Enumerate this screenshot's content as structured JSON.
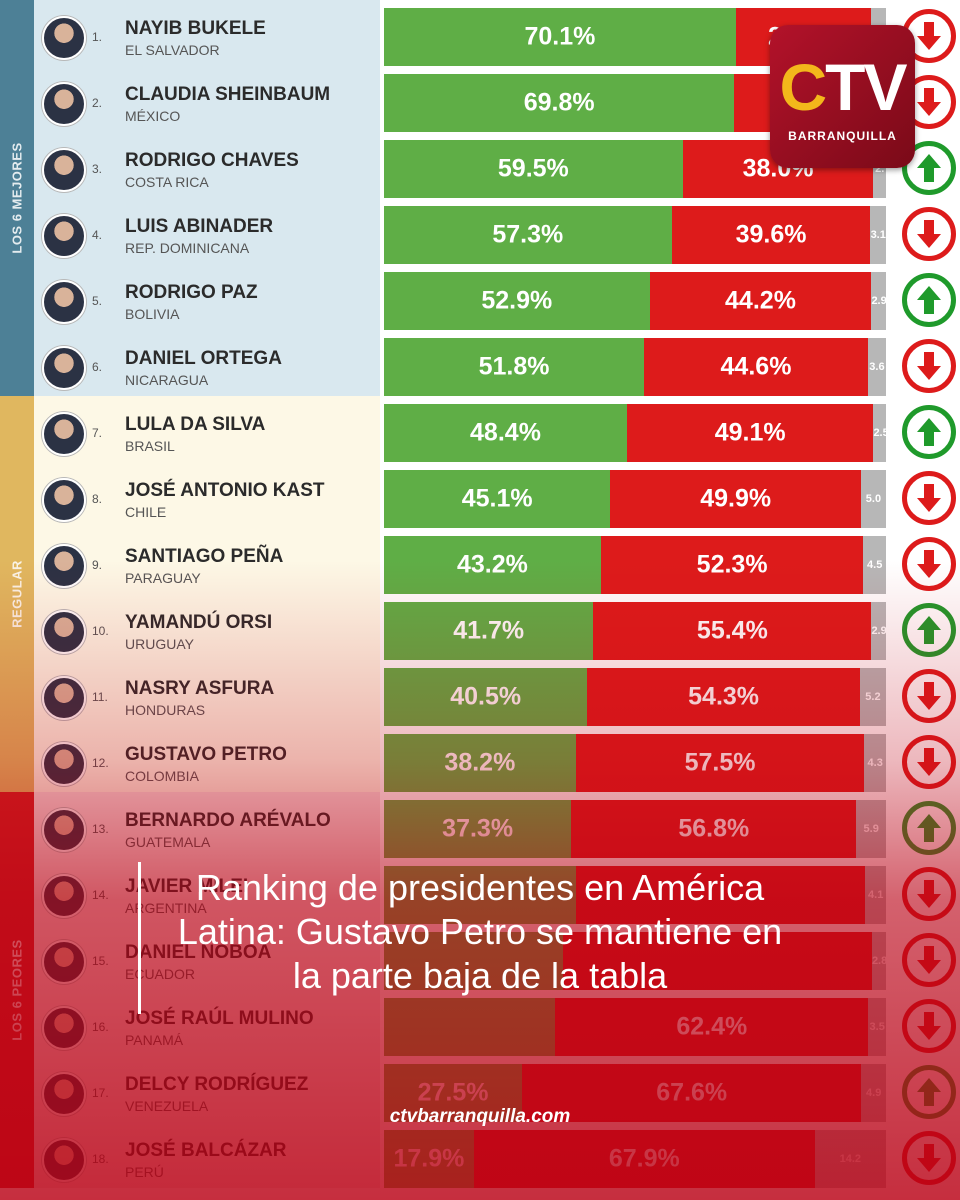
{
  "categories": [
    {
      "label": "LOS 6 MEJORES",
      "color": "#4d8096"
    },
    {
      "label": "REGULAR",
      "color": "#e0b75f"
    },
    {
      "label": "LOS 6 PEORES",
      "color": "#cf1f1f"
    }
  ],
  "chart_data": {
    "type": "bar",
    "stacked": true,
    "series": [
      {
        "name": "approval",
        "color": "#5fae46"
      },
      {
        "name": "disapproval",
        "color": "#dd1b1b"
      },
      {
        "name": "ns/nr",
        "color": "#b7b7b7"
      }
    ],
    "rows": [
      {
        "rank": "1.",
        "name": "NAYIB BUKELE",
        "country": "EL SALVADOR",
        "approval": 70.1,
        "approval_label": "70.1%",
        "disapproval": 26.9,
        "disapproval_label": "26.9%",
        "other": 3.0,
        "other_label": "",
        "trend": "down"
      },
      {
        "rank": "2.",
        "name": "CLAUDIA SHEINBAUM",
        "country": "MÉXICO",
        "approval": 69.8,
        "approval_label": "69.8%",
        "disapproval": 27.0,
        "disapproval_label": "2",
        "other": 3.2,
        "other_label": "",
        "trend": "down"
      },
      {
        "rank": "3.",
        "name": "RODRIGO CHAVES",
        "country": "COSTA RICA",
        "approval": 59.5,
        "approval_label": "59.5%",
        "disapproval": 38.0,
        "disapproval_label": "38.0%",
        "other": 2.5,
        "other_label": "2.",
        "trend": "up"
      },
      {
        "rank": "4.",
        "name": "LUIS ABINADER",
        "country": "REP. DOMINICANA",
        "approval": 57.3,
        "approval_label": "57.3%",
        "disapproval": 39.6,
        "disapproval_label": "39.6%",
        "other": 3.1,
        "other_label": "3.1",
        "trend": "down"
      },
      {
        "rank": "5.",
        "name": "RODRIGO PAZ",
        "country": "BOLIVIA",
        "approval": 52.9,
        "approval_label": "52.9%",
        "disapproval": 44.2,
        "disapproval_label": "44.2%",
        "other": 2.9,
        "other_label": "2.9",
        "trend": "up"
      },
      {
        "rank": "6.",
        "name": "DANIEL ORTEGA",
        "country": "NICARAGUA",
        "approval": 51.8,
        "approval_label": "51.8%",
        "disapproval": 44.6,
        "disapproval_label": "44.6%",
        "other": 3.6,
        "other_label": "3.6",
        "trend": "down"
      },
      {
        "rank": "7.",
        "name": "LULA DA SILVA",
        "country": "BRASIL",
        "approval": 48.4,
        "approval_label": "48.4%",
        "disapproval": 49.1,
        "disapproval_label": "49.1%",
        "other": 2.5,
        "other_label": "2.5",
        "trend": "up"
      },
      {
        "rank": "8.",
        "name": "JOSÉ ANTONIO KAST",
        "country": "CHILE",
        "approval": 45.1,
        "approval_label": "45.1%",
        "disapproval": 49.9,
        "disapproval_label": "49.9%",
        "other": 5.0,
        "other_label": "5.0",
        "trend": "down"
      },
      {
        "rank": "9.",
        "name": "SANTIAGO PEÑA",
        "country": "PARAGUAY",
        "approval": 43.2,
        "approval_label": "43.2%",
        "disapproval": 52.3,
        "disapproval_label": "52.3%",
        "other": 4.5,
        "other_label": "4.5",
        "trend": "down"
      },
      {
        "rank": "10.",
        "name": "YAMANDÚ ORSI",
        "country": "URUGUAY",
        "approval": 41.7,
        "approval_label": "41.7%",
        "disapproval": 55.4,
        "disapproval_label": "55.4%",
        "other": 2.9,
        "other_label": "2.9",
        "trend": "up"
      },
      {
        "rank": "11.",
        "name": "NASRY ASFURA",
        "country": "HONDURAS",
        "approval": 40.5,
        "approval_label": "40.5%",
        "disapproval": 54.3,
        "disapproval_label": "54.3%",
        "other": 5.2,
        "other_label": "5.2",
        "trend": "down"
      },
      {
        "rank": "12.",
        "name": "GUSTAVO PETRO",
        "country": "COLOMBIA",
        "approval": 38.2,
        "approval_label": "38.2%",
        "disapproval": 57.5,
        "disapproval_label": "57.5%",
        "other": 4.3,
        "other_label": "4.3",
        "trend": "down"
      },
      {
        "rank": "13.",
        "name": "BERNARDO ARÉVALO",
        "country": "GUATEMALA",
        "approval": 37.3,
        "approval_label": "37.3%",
        "disapproval": 56.8,
        "disapproval_label": "56.8%",
        "other": 5.9,
        "other_label": "5.9",
        "trend": "up"
      },
      {
        "rank": "14.",
        "name": "JAVIER MILEI",
        "country": "ARGENTINA",
        "approval": 38.2,
        "approval_label": "",
        "disapproval": 57.7,
        "disapproval_label": "",
        "other": 4.1,
        "other_label": "4.1",
        "trend": "down"
      },
      {
        "rank": "15.",
        "name": "DANIEL NOBOA",
        "country": "ECUADOR",
        "approval": 35.7,
        "approval_label": "",
        "disapproval": 61.5,
        "disapproval_label": "",
        "other": 2.8,
        "other_label": "2.8",
        "trend": "down"
      },
      {
        "rank": "16.",
        "name": "JOSÉ RAÚL MULINO",
        "country": "PANAMÁ",
        "approval": 34.1,
        "approval_label": "",
        "disapproval": 62.4,
        "disapproval_label": "62.4%",
        "other": 3.5,
        "other_label": "3.5",
        "trend": "down"
      },
      {
        "rank": "17.",
        "name": "DELCY RODRÍGUEZ",
        "country": "VENEZUELA",
        "approval": 27.5,
        "approval_label": "27.5%",
        "disapproval": 67.6,
        "disapproval_label": "67.6%",
        "other": 4.9,
        "other_label": "4.9",
        "trend": "up"
      },
      {
        "rank": "18.",
        "name": "JOSÉ BALCÁZAR",
        "country": "PERÚ",
        "approval": 17.9,
        "approval_label": "17.9%",
        "disapproval": 67.9,
        "disapproval_label": "67.9%",
        "other": 14.2,
        "other_label": "14.2",
        "trend": "down"
      }
    ]
  },
  "logo": {
    "text": "CTV",
    "subtitle": "BARRANQUILLA"
  },
  "headline": "Ranking de presidentes en América Latina: Gustavo Petro se mantiene en la parte baja de la tabla",
  "website": "ctvbarranquilla.com"
}
